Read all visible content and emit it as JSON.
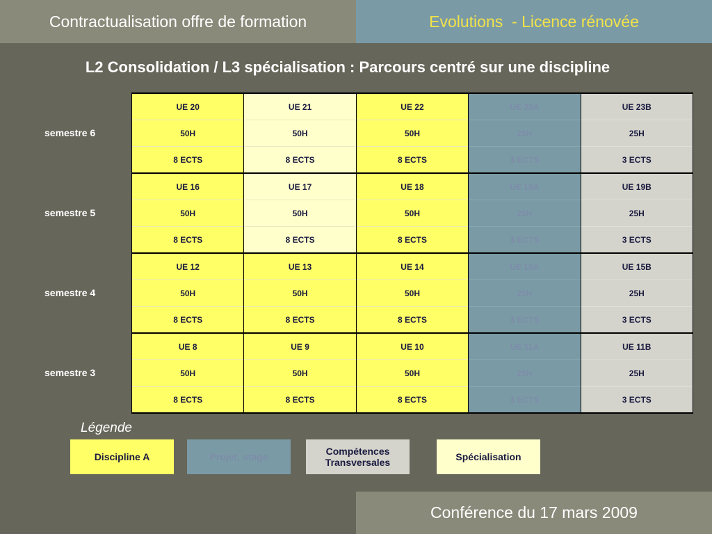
{
  "header": {
    "left_title": "Contractualisation offre de formation",
    "right_title": "Evolutions  - Licence rénovée"
  },
  "slide_title": "L2 Consolidation / L3 spécialisation : Parcours centré sur une discipline",
  "semesters": [
    {
      "label": "semestre 6",
      "ues": [
        "UE 20",
        "UE 21",
        "UE 22",
        "UE 23A",
        "UE 23B"
      ],
      "hours": [
        "50H",
        "50H",
        "50H",
        "25H",
        "25H"
      ],
      "ects": [
        "8 ECTS",
        "8 ECTS",
        "8 ECTS",
        "3 ECTS",
        "3 ECTS"
      ]
    },
    {
      "label": "semestre 5",
      "ues": [
        "UE 16",
        "UE 17",
        "UE 18",
        "UE 19A",
        "UE 19B"
      ],
      "hours": [
        "50H",
        "50H",
        "50H",
        "25H",
        "25H"
      ],
      "ects": [
        "8 ECTS",
        "8 ECTS",
        "8 ECTS",
        "3 ECTS",
        "3 ECTS"
      ]
    },
    {
      "label": "semestre 4",
      "ues": [
        "UE 12",
        "UE 13",
        "UE 14",
        "UE 15A",
        "UE 15B"
      ],
      "hours": [
        "50H",
        "50H",
        "50H",
        "25H",
        "25H"
      ],
      "ects": [
        "8 ECTS",
        "8 ECTS",
        "8 ECTS",
        "3 ECTS",
        "3 ECTS"
      ]
    },
    {
      "label": "semestre 3",
      "ues": [
        "UE 8",
        "UE 9",
        "UE 10",
        "UE 11A",
        "UE 11B"
      ],
      "hours": [
        "50H",
        "50H",
        "50H",
        "25H",
        "25H"
      ],
      "ects": [
        "8 ECTS",
        "8 ECTS",
        "8 ECTS",
        "3 ECTS",
        "3 ECTS"
      ]
    }
  ],
  "legend": {
    "title": "Légende",
    "discipline": "Discipline A",
    "projet": "Projet, stage",
    "competences": "Compétences\nTransversales",
    "specialisation": "Spécialisation"
  },
  "colors": {
    "discipline": "#ffff66",
    "specialisation": "#ffffcc",
    "projet": "#7a9ba6",
    "competences": "#d4d4cc",
    "background": "#66665a"
  },
  "footer": {
    "text": "Conférence du 17 mars 2009"
  }
}
